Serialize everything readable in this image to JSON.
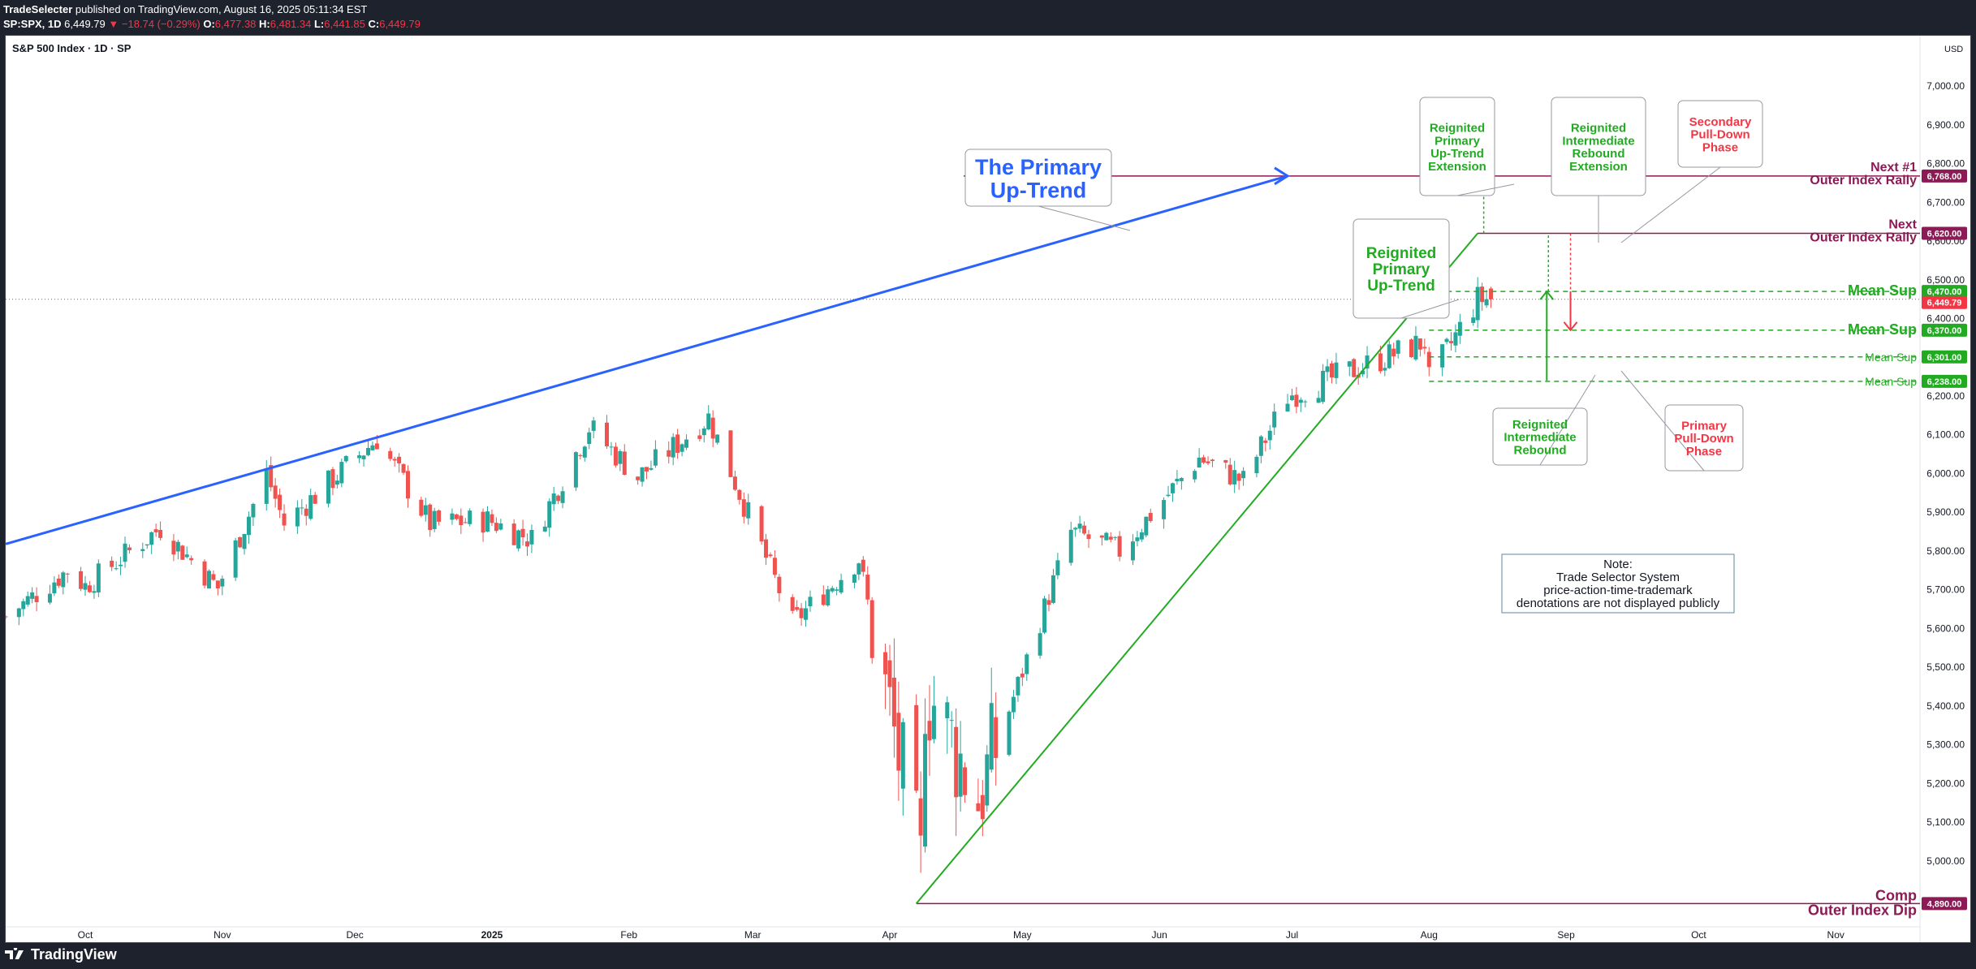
{
  "header": {
    "publisher": "TradeSelecter",
    "published_text": "published on TradingView.com, August 16, 2025 05:11:34 EST",
    "symbol": "SP:SPX, 1D",
    "last": "6,449.79",
    "change": "▼ −18.74 (−0.29%)",
    "o_label": "O:",
    "o": "6,477.38",
    "h_label": "H:",
    "h": "6,481.34",
    "l_label": "L:",
    "l": "6,441.85",
    "c_label": "C:",
    "c": "6,449.79"
  },
  "chart_title": "S&P 500 Index · 1D · SP",
  "currency": "USD",
  "footer": {
    "brand": "TradingView"
  },
  "colors": {
    "up": "#26a69a",
    "down": "#ef5350",
    "trend_blue": "#2962ff",
    "green": "#22ab22",
    "red": "#f23645",
    "maroon": "#8b1a55",
    "note_border": "#5b8aa0"
  },
  "chart_data": {
    "type": "candlestick",
    "title": "S&P 500 Index · 1D · SP",
    "ylabel": "USD",
    "ylim": [
      4830,
      7130
    ],
    "y_ticks": [
      "7,000.00",
      "6,900.00",
      "6,800.00",
      "6,700.00",
      "6,600.00",
      "6,500.00",
      "6,400.00",
      "6,300.00",
      "6,200.00",
      "6,100.00",
      "6,000.00",
      "5,900.00",
      "5,800.00",
      "5,700.00",
      "5,600.00",
      "5,500.00",
      "5,400.00",
      "5,300.00",
      "5,200.00",
      "5,100.00",
      "5,000.00"
    ],
    "x_ticks": [
      "Oct",
      "Nov",
      "Dec",
      "2025",
      "Feb",
      "Mar",
      "Apr",
      "May",
      "Jun",
      "Jul",
      "Aug",
      "Sep",
      "Oct",
      "Nov"
    ],
    "price_path": [
      [
        "2024-09-13",
        5630
      ],
      [
        "2024-09-27",
        5750
      ],
      [
        "2024-10-01",
        5710
      ],
      [
        "2024-10-18",
        5860
      ],
      [
        "2024-10-31",
        5705
      ],
      [
        "2024-11-11",
        6000
      ],
      [
        "2024-11-15",
        5870
      ],
      [
        "2024-12-06",
        6090
      ],
      [
        "2024-12-18",
        5870
      ],
      [
        "2024-12-31",
        5880
      ],
      [
        "2025-01-10",
        5830
      ],
      [
        "2025-01-23",
        6120
      ],
      [
        "2025-02-03",
        5990
      ],
      [
        "2025-02-19",
        6145
      ],
      [
        "2025-03-10",
        5615
      ],
      [
        "2025-03-25",
        5780
      ],
      [
        "2025-04-08",
        4980
      ],
      [
        "2025-04-09",
        5460
      ],
      [
        "2025-04-21",
        5160
      ],
      [
        "2025-05-12",
        5850
      ],
      [
        "2025-05-23",
        5800
      ],
      [
        "2025-06-10",
        6040
      ],
      [
        "2025-06-20",
        5980
      ],
      [
        "2025-06-30",
        6200
      ],
      [
        "2025-07-31",
        6340
      ],
      [
        "2025-08-01",
        6240
      ],
      [
        "2025-08-12",
        6450
      ],
      [
        "2025-08-15",
        6449.79
      ]
    ],
    "last_candle": {
      "date": "2025-08-15",
      "open": 6477.38,
      "high": 6481.34,
      "low": 6441.85,
      "close": 6449.79
    },
    "levels": [
      {
        "value": 6768.0,
        "label": "6,768.00",
        "name": "Next #1",
        "name2": "Outer Index Rally"
      },
      {
        "value": 6620.0,
        "label": "6,620.00",
        "name": "Next",
        "name2": "Outer Index Rally"
      },
      {
        "value": 6470.0,
        "label": "6,470.00",
        "name": "Mean Sup"
      },
      {
        "value": 6370.0,
        "label": "6,370.00",
        "name": "Mean Sup"
      },
      {
        "value": 6301.0,
        "label": "6,301.00",
        "name": "Mean Sup"
      },
      {
        "value": 6238.0,
        "label": "6,238.00",
        "name": "Mean Sup"
      },
      {
        "value": 4890.0,
        "label": "4,890.00",
        "name": "Comp",
        "name2": "Outer Index Dip"
      }
    ],
    "last_price_label": "6,449.79",
    "annotations": {
      "primary_uptrend": "The Primary\nUp-Trend",
      "reignited_uptrend": "Reignited\nPrimary\nUp-Trend",
      "reignited_extension": "Reignited\nPrimary\nUp-Trend\nExtension",
      "reignited_rebound_ext": "Reignited\nIntermediate\nRebound\nExtension",
      "secondary_pulldown": "Secondary\nPull-Down\nPhase",
      "reignited_rebound": "Reignited\nIntermediate\nRebound",
      "primary_pulldown": "Primary\nPull-Down\nPhase",
      "note": "Note:\nTrade Selector System\nprice-action-time-trademark\ndenotations are not displayed publicly"
    }
  }
}
